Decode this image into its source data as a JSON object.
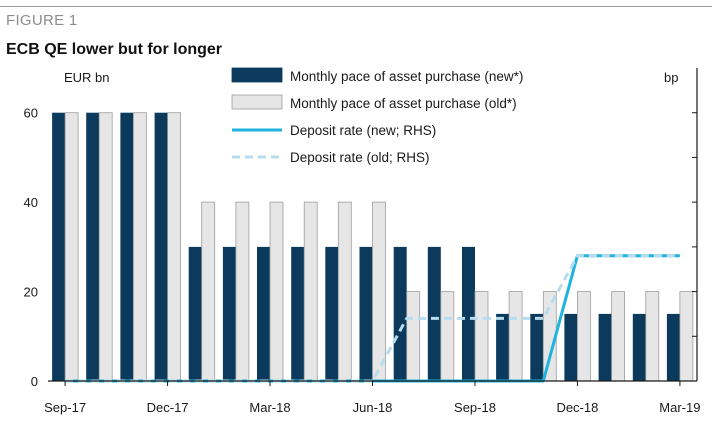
{
  "figure": {
    "label": "FIGURE 1",
    "title": "ECB QE lower but for longer"
  },
  "colors": {
    "new_bar": "#0b3a5c",
    "old_bar": "#e6e6e6",
    "old_bar_edge": "#9d9d9d",
    "deposit_new": "#1fb4e0",
    "deposit_old": "#b6dcee",
    "axis": "#1a1a1a"
  },
  "chart_data": {
    "type": "bar",
    "y_left_label": "EUR bn",
    "y_right_label": "bp",
    "ylim": [
      0,
      70
    ],
    "y_ticks": [
      0,
      20,
      40,
      60
    ],
    "x_tick_labels": [
      "Sep-17",
      "Dec-17",
      "Mar-18",
      "Jun-18",
      "Sep-18",
      "Dec-18",
      "Mar-19"
    ],
    "categories": [
      "Sep-17",
      "Oct-17",
      "Nov-17",
      "Dec-17",
      "Jan-18",
      "Feb-18",
      "Mar-18",
      "Apr-18",
      "May-18",
      "Jun-18",
      "Jul-18",
      "Aug-18",
      "Sep-18",
      "Oct-18",
      "Nov-18",
      "Dec-18",
      "Jan-19",
      "Feb-19",
      "Mar-19"
    ],
    "series": [
      {
        "name": "Monthly pace of asset purchase (new*)",
        "kind": "bar",
        "values": [
          60,
          60,
          60,
          60,
          30,
          30,
          30,
          30,
          30,
          30,
          30,
          30,
          30,
          15,
          15,
          15,
          15,
          15,
          15
        ]
      },
      {
        "name": "Monthly pace of asset purchase (old*)",
        "kind": "bar",
        "values": [
          60,
          60,
          60,
          60,
          40,
          40,
          40,
          40,
          40,
          40,
          20,
          20,
          20,
          20,
          20,
          20,
          20,
          20,
          20
        ]
      },
      {
        "name": "Deposit rate (new; RHS)",
        "kind": "line",
        "style": "solid",
        "values": [
          0,
          0,
          0,
          0,
          0,
          0,
          0,
          0,
          0,
          0,
          0,
          0,
          0,
          0,
          0,
          28,
          28,
          28,
          28
        ]
      },
      {
        "name": "Deposit rate (old; RHS)",
        "kind": "line",
        "style": "dashed",
        "values": [
          0,
          0,
          0,
          0,
          0,
          0,
          0,
          0,
          0,
          0,
          14,
          14,
          14,
          14,
          14,
          28,
          28,
          28,
          28
        ]
      }
    ],
    "legend_position": "top-right",
    "grid": false
  }
}
